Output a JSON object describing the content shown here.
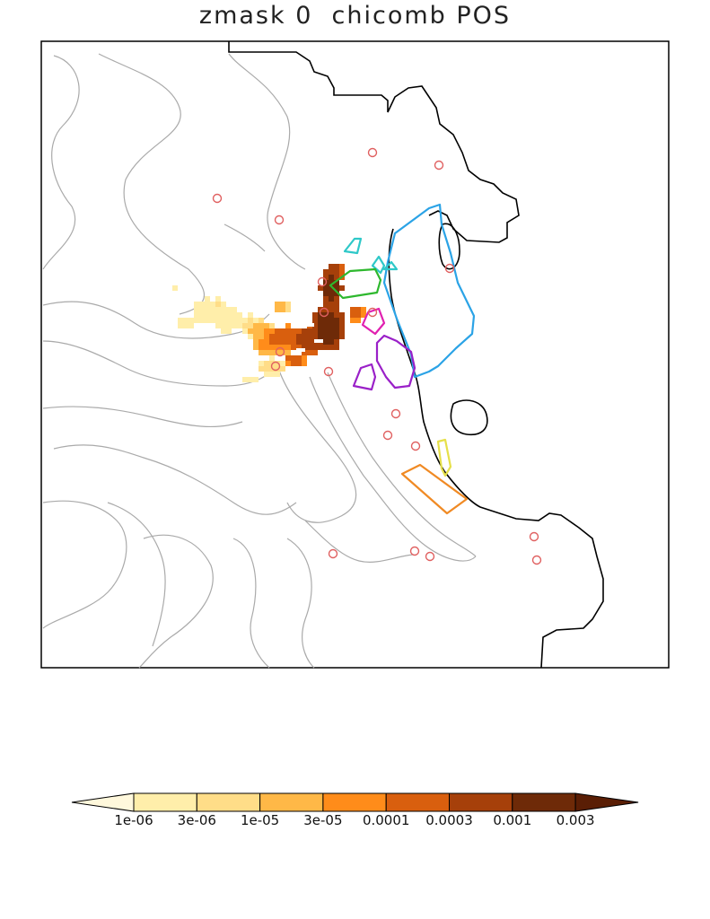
{
  "title": "zmask 0  chicomb POS",
  "colorbar": {
    "labels": [
      "1e-06",
      "3e-06",
      "1e-05",
      "3e-05",
      "0.0001",
      "0.0003",
      "0.001",
      "0.003"
    ],
    "colors": [
      "#fff8dc",
      "#ffeeaa",
      "#ffdd88",
      "#ffb847",
      "#ff8c1a",
      "#d95f0e",
      "#a6400a",
      "#6e2a08",
      "#5a1e05"
    ]
  },
  "colors": {
    "coastline": "#000000",
    "contour": "#aaaaaa",
    "station": "#e06060",
    "region_blue": "#2ba3e6",
    "region_cyan": "#2ec8c8",
    "region_green": "#2eb82e",
    "region_magenta": "#e020b0",
    "region_purple": "#9a20c8",
    "region_yellow": "#e6e04a",
    "region_orange": "#f08a24"
  }
}
